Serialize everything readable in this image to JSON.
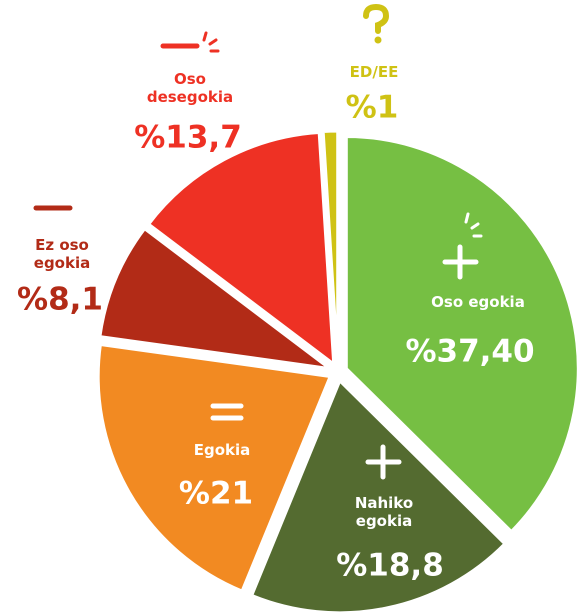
{
  "chart_data": {
    "type": "pie",
    "categories": [
      "Oso egokia",
      "Nahiko egokia",
      "Egokia",
      "Ez oso egokia",
      "Oso desegokia",
      "ED/EE"
    ],
    "values": [
      37.4,
      18.8,
      21,
      8.1,
      13.7,
      1
    ],
    "value_labels": [
      "%37,40",
      "%18,8",
      "%21",
      "%8,1",
      "%13,7",
      "%1"
    ],
    "colors": [
      "#76bf43",
      "#546b30",
      "#f28a22",
      "#b22b17",
      "#ee3124",
      "#cfc214"
    ]
  }
}
